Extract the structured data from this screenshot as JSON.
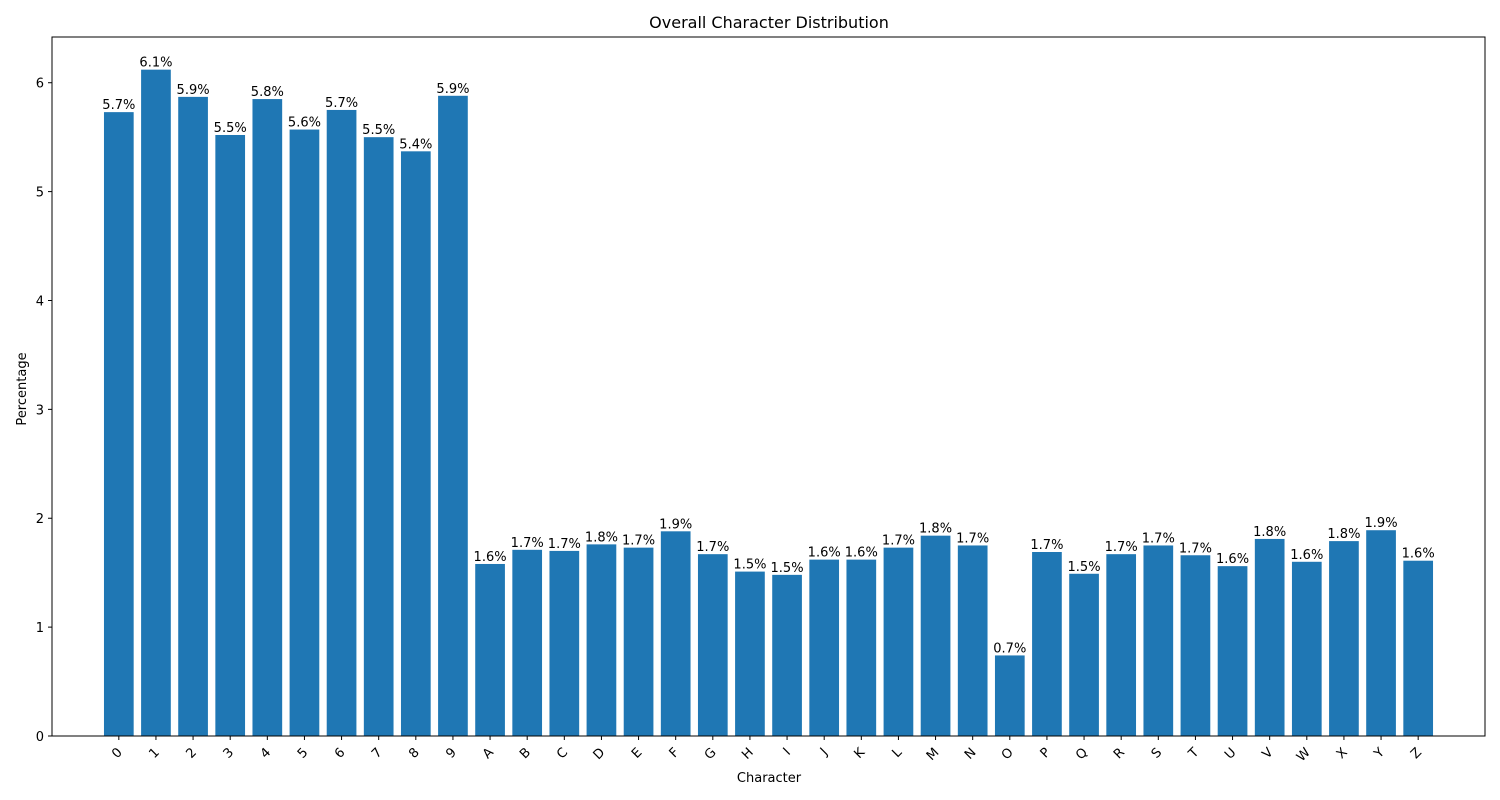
{
  "chart_data": {
    "type": "bar",
    "title": "Overall Character Distribution",
    "xlabel": "Character",
    "ylabel": "Percentage",
    "ylim": [
      0,
      6.42
    ],
    "yticks": [
      0,
      1,
      2,
      3,
      4,
      5,
      6
    ],
    "grid": false,
    "bar_color": "#1f77b4",
    "categories": [
      "0",
      "1",
      "2",
      "3",
      "4",
      "5",
      "6",
      "7",
      "8",
      "9",
      "A",
      "B",
      "C",
      "D",
      "E",
      "F",
      "G",
      "H",
      "I",
      "J",
      "K",
      "L",
      "M",
      "N",
      "O",
      "P",
      "Q",
      "R",
      "S",
      "T",
      "U",
      "V",
      "W",
      "X",
      "Y",
      "Z"
    ],
    "values": [
      5.73,
      6.12,
      5.87,
      5.52,
      5.85,
      5.57,
      5.75,
      5.5,
      5.37,
      5.88,
      1.58,
      1.71,
      1.7,
      1.76,
      1.73,
      1.88,
      1.67,
      1.51,
      1.48,
      1.62,
      1.62,
      1.73,
      1.84,
      1.75,
      0.74,
      1.69,
      1.49,
      1.67,
      1.75,
      1.66,
      1.56,
      1.81,
      1.6,
      1.79,
      1.89,
      1.61
    ],
    "bar_labels": [
      "5.7%",
      "6.1%",
      "5.9%",
      "5.5%",
      "5.8%",
      "5.6%",
      "5.7%",
      "5.5%",
      "5.4%",
      "5.9%",
      "1.6%",
      "1.7%",
      "1.7%",
      "1.8%",
      "1.7%",
      "1.9%",
      "1.7%",
      "1.5%",
      "1.5%",
      "1.6%",
      "1.6%",
      "1.7%",
      "1.8%",
      "1.7%",
      "0.7%",
      "1.7%",
      "1.5%",
      "1.7%",
      "1.7%",
      "1.7%",
      "1.6%",
      "1.8%",
      "1.6%",
      "1.8%",
      "1.9%",
      "1.6%"
    ]
  }
}
